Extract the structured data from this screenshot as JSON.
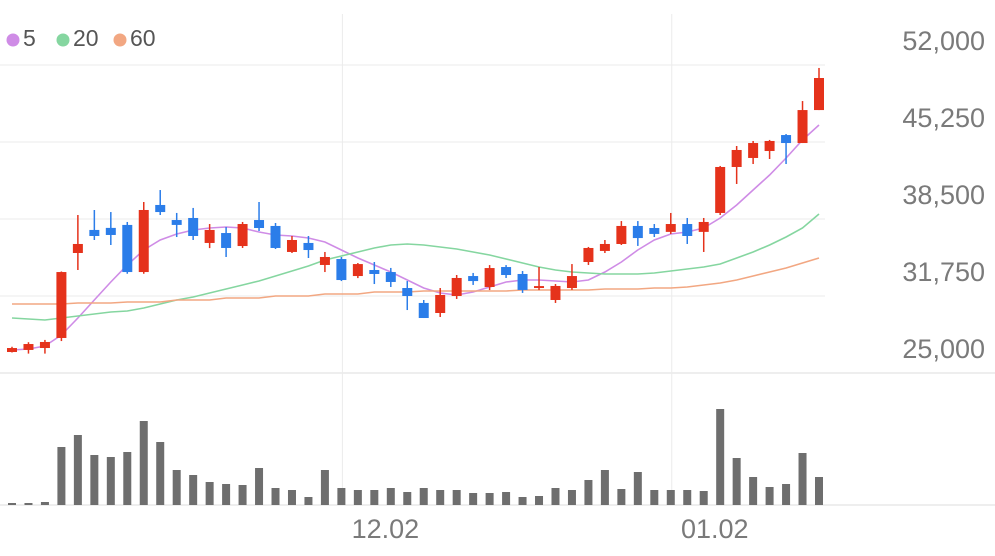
{
  "chart_data": {
    "type": "candlestick",
    "categories": [
      null,
      null,
      null,
      null,
      null,
      null,
      null,
      null,
      null,
      null,
      null,
      null,
      null,
      null,
      null,
      null,
      null,
      null,
      null,
      null,
      "12.02",
      null,
      null,
      null,
      null,
      null,
      null,
      null,
      null,
      null,
      null,
      null,
      null,
      null,
      null,
      null,
      null,
      null,
      null,
      null,
      "01.02",
      null,
      null,
      null,
      null,
      null,
      null,
      null,
      null,
      null
    ],
    "open": [
      26840,
      27020,
      27190,
      28070,
      35520,
      37540,
      37720,
      37980,
      33850,
      39730,
      38410,
      38590,
      36400,
      37270,
      36130,
      38410,
      37890,
      35610,
      36400,
      34470,
      34990,
      33500,
      34030,
      33850,
      32450,
      31140,
      30260,
      31750,
      33500,
      32540,
      34290,
      33680,
      32450,
      31400,
      32450,
      34730,
      35700,
      36310,
      37890,
      37710,
      37370,
      38060,
      37370,
      39030,
      43060,
      43850,
      44460,
      45860,
      45160,
      48050
    ],
    "high": [
      27300,
      27700,
      27900,
      33900,
      38850,
      39290,
      39110,
      38240,
      39990,
      41040,
      39030,
      39470,
      38060,
      37800,
      38240,
      39990,
      38150,
      37010,
      37010,
      35610,
      35170,
      34640,
      34730,
      34210,
      33060,
      31400,
      32450,
      33590,
      33770,
      34460,
      34460,
      33940,
      34290,
      32800,
      34550,
      36050,
      36660,
      38320,
      38320,
      38060,
      39030,
      38590,
      38590,
      43150,
      44900,
      45340,
      45430,
      45950,
      48840,
      51740
    ],
    "low": [
      26800,
      26700,
      26700,
      27800,
      34030,
      36660,
      36220,
      33700,
      33700,
      38850,
      36920,
      36660,
      35950,
      35170,
      35960,
      37450,
      35870,
      35520,
      35080,
      33850,
      33060,
      33320,
      32800,
      32540,
      30520,
      29820,
      29910,
      31490,
      32720,
      32270,
      33330,
      32020,
      32270,
      31140,
      32280,
      34470,
      35520,
      36220,
      36140,
      36920,
      37190,
      36310,
      35610,
      38850,
      41570,
      43320,
      43760,
      43320,
      45160,
      48050
    ],
    "close": [
      27190,
      27540,
      27720,
      33850,
      36310,
      37010,
      37100,
      33850,
      39290,
      39110,
      37980,
      37010,
      37540,
      35960,
      38060,
      37710,
      35960,
      36660,
      35780,
      35170,
      33150,
      34550,
      33680,
      32980,
      31750,
      29820,
      31840,
      33330,
      33060,
      34200,
      33590,
      32280,
      32620,
      32630,
      33500,
      35960,
      36310,
      37890,
      36830,
      37190,
      38060,
      37010,
      38240,
      43060,
      44550,
      45160,
      45340,
      45160,
      48050,
      50860
    ],
    "up_color": "#e5321b",
    "down_color": "#2b7de9",
    "series": [
      {
        "name": "5",
        "color": "#cf8ce6",
        "values": [
          27016,
          27104,
          27367,
          28331,
          29821,
          31399,
          32977,
          34467,
          35782,
          36659,
          37185,
          37535,
          37711,
          37799,
          37711,
          37360,
          37097,
          37009,
          36834,
          36483,
          35782,
          35081,
          34467,
          33854,
          33152,
          32451,
          32013,
          31837,
          32100,
          32539,
          32977,
          33152,
          33152,
          33065,
          32977,
          33152,
          33854,
          34730,
          35782,
          36659,
          37185,
          37360,
          37711,
          38587,
          39727,
          41042,
          42357,
          43847,
          45425,
          46740
        ]
      },
      {
        "name": "20",
        "color": "#85d6a0",
        "values": [
          29821,
          29734,
          29646,
          29821,
          29997,
          30172,
          30347,
          30435,
          30698,
          31049,
          31399,
          31662,
          32013,
          32364,
          32714,
          33065,
          33503,
          33941,
          34380,
          34906,
          35256,
          35607,
          35958,
          36220,
          36308,
          36220,
          36045,
          35870,
          35607,
          35344,
          34993,
          34643,
          34292,
          34029,
          33854,
          33766,
          33678,
          33678,
          33678,
          33766,
          33941,
          34117,
          34292,
          34555,
          35081,
          35607,
          36220,
          36922,
          37711,
          38938
        ]
      },
      {
        "name": "60",
        "color": "#f2a782",
        "values": [
          31049,
          31049,
          31049,
          31049,
          31136,
          31136,
          31136,
          31224,
          31224,
          31224,
          31399,
          31399,
          31399,
          31575,
          31575,
          31575,
          31750,
          31750,
          31750,
          31925,
          31925,
          31925,
          32100,
          32100,
          32100,
          32188,
          32188,
          32188,
          32188,
          32188,
          32188,
          32276,
          32276,
          32276,
          32276,
          32276,
          32363,
          32363,
          32363,
          32451,
          32451,
          32539,
          32714,
          32889,
          33152,
          33503,
          33854,
          34204,
          34643,
          35081
        ]
      }
    ],
    "volume": [
      2,
      2,
      3,
      58,
      70,
      50,
      48,
      53,
      84,
      63,
      35,
      30,
      23,
      21,
      20,
      37,
      17,
      15,
      8,
      35,
      17,
      15,
      15,
      17,
      13,
      17,
      15,
      15,
      12,
      12,
      13,
      8,
      9,
      17,
      15,
      25,
      35,
      16,
      33,
      15,
      15,
      15,
      14,
      96,
      47,
      28,
      18,
      21,
      52,
      28
    ],
    "volume_color": "#6e6e6e",
    "ylim": [
      25000,
      52000
    ],
    "yticks": [
      {
        "value": 25000,
        "label": "25,000"
      },
      {
        "value": 31750,
        "label": "31,750"
      },
      {
        "value": 38500,
        "label": "38,500"
      },
      {
        "value": 45250,
        "label": "45,250"
      },
      {
        "value": 52000,
        "label": "52,000"
      }
    ],
    "grid": true
  }
}
